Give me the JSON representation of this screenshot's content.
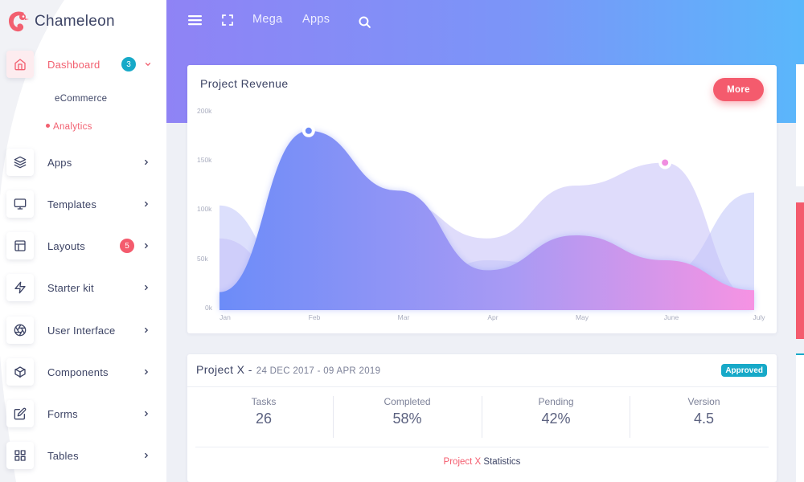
{
  "brand": {
    "name": "Chameleon"
  },
  "sidebar": {
    "items": [
      {
        "label": "Dashboard",
        "icon": "home-icon",
        "badge": "3",
        "badge_color": "#17a9c8",
        "active": true
      },
      {
        "label": "Apps",
        "icon": "layers-icon"
      },
      {
        "label": "Templates",
        "icon": "monitor-icon"
      },
      {
        "label": "Layouts",
        "icon": "layout-icon",
        "badge": "5",
        "badge_color": "#f45b6d"
      },
      {
        "label": "Starter kit",
        "icon": "zap-icon"
      },
      {
        "label": "User Interface",
        "icon": "aperture-icon"
      },
      {
        "label": "Components",
        "icon": "box-icon"
      },
      {
        "label": "Forms",
        "icon": "edit-icon"
      },
      {
        "label": "Tables",
        "icon": "grid-icon"
      }
    ],
    "subitems": [
      {
        "label": "eCommerce",
        "active": false
      },
      {
        "label": "Analytics",
        "active": true
      }
    ]
  },
  "header": {
    "menu_icon": "menu-icon",
    "fullscreen_icon": "fullscreen-icon",
    "mega_label": "Mega",
    "apps_label": "Apps",
    "search_icon": "search-icon"
  },
  "revenue_card": {
    "title": "Project Revenue",
    "more_label": "More"
  },
  "chart_data": {
    "type": "area",
    "title": "Project Revenue",
    "xlabel": "",
    "ylabel": "",
    "categories": [
      "Jan",
      "Feb",
      "Mar",
      "Apr",
      "May",
      "June",
      "July"
    ],
    "ytick_labels": [
      "200k",
      "150k",
      "100k",
      "50k",
      "0k"
    ],
    "ylim": [
      0,
      200000
    ],
    "series": [
      {
        "values": [
          18000,
          180000,
          120000,
          40000,
          75000,
          50000,
          20000
        ]
      },
      {
        "values": [
          72000,
          5000,
          110000,
          72000,
          125000,
          148000,
          10000
        ]
      },
      {
        "values": [
          105000,
          5000,
          5000,
          50000,
          42000,
          35000,
          118000
        ]
      }
    ],
    "colors": [
      "#6f8cf7",
      "#9aa3f5",
      "#c5c0f7",
      "#f08de0"
    ],
    "grid": false,
    "legend": "none"
  },
  "project_card": {
    "title": "Project X -",
    "dates": "24 DEC 2017 - 09 APR 2019",
    "status": "Approved",
    "stats": [
      {
        "label": "Tasks",
        "value": "26"
      },
      {
        "label": "Completed",
        "value": "58%"
      },
      {
        "label": "Pending",
        "value": "42%"
      },
      {
        "label": "Version",
        "value": "4.5"
      }
    ],
    "footer_highlight": "Project X",
    "footer_text": "Statistics"
  },
  "colors": {
    "accent": "#f45b6d",
    "info": "#17a9c8",
    "header_start": "#8f83f5",
    "header_end": "#5ab7fb"
  }
}
